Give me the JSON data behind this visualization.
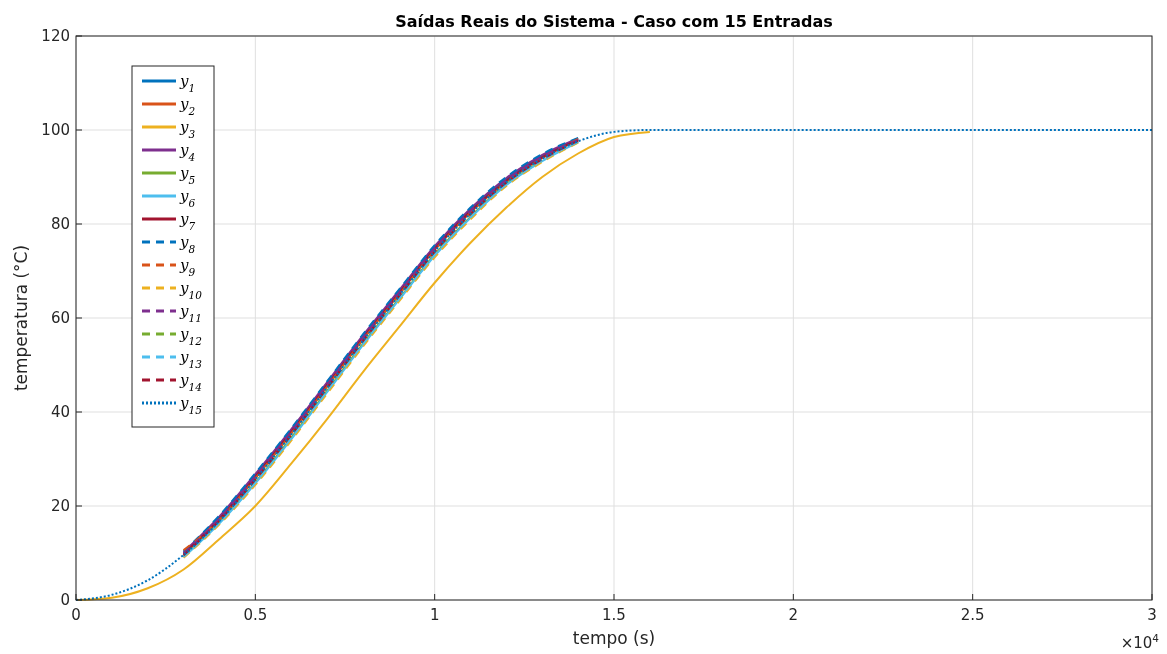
{
  "chart_data": {
    "type": "line",
    "title": "Saídas Reais do Sistema - Caso com 15 Entradas",
    "xlabel": "tempo (s)",
    "ylabel": "temperatura (°C)",
    "x": [
      0,
      0.1,
      0.2,
      0.3,
      0.4,
      0.5,
      0.6,
      0.7,
      0.8,
      0.9,
      1,
      1.1,
      1.2,
      1.3,
      1.4,
      1.5,
      1.6,
      1.7,
      2,
      3
    ],
    "xlim": [
      0,
      3
    ],
    "xticks": [
      0,
      0.5,
      1,
      1.5,
      2,
      2.5,
      3
    ],
    "ylim": [
      0,
      120
    ],
    "yticks": [
      0,
      20,
      40,
      60,
      80,
      100,
      120
    ],
    "grid": true,
    "legend": "top left",
    "line_style": "solid",
    "annotations": [
      "×10$^{4}$"
    ],
    "series": [
      {
        "name": "y$_{1}$",
        "color": "#0072bd",
        "values": [
          null,
          null,
          null,
          10,
          17.5,
          26.5,
          36,
          46,
          56,
          65.5,
          75,
          83,
          89.5,
          94.5,
          98,
          null,
          null,
          null,
          null,
          null
        ]
      },
      {
        "name": "y$_{2}$",
        "color": "#d95319",
        "values": [
          null,
          null,
          null,
          9.7,
          17,
          26,
          35.5,
          45.5,
          55.5,
          65,
          74.5,
          82.5,
          89,
          94,
          97.8,
          null,
          null,
          null,
          null,
          null
        ]
      },
      {
        "name": "y$_{3}$",
        "color": "#edb120",
        "values": [
          0,
          0.5,
          2.5,
          6.5,
          13,
          20,
          29,
          38.5,
          48.5,
          58,
          67.5,
          76,
          83.5,
          90,
          95,
          98.5,
          99.6,
          null,
          null,
          null
        ]
      },
      {
        "name": "y$_{4}$",
        "color": "#7e2f8e",
        "values": [
          null,
          null,
          null,
          10.2,
          17.8,
          26.8,
          36.3,
          46.3,
          56.3,
          65.8,
          75.3,
          83.3,
          89.8,
          94.7,
          98.2,
          null,
          null,
          null,
          null,
          null
        ]
      },
      {
        "name": "y$_{5}$",
        "color": "#77ac30",
        "values": [
          null,
          null,
          null,
          9.2,
          16.5,
          25,
          34.5,
          44.5,
          54.5,
          64,
          73.5,
          81.5,
          88.5,
          93.5,
          null,
          null,
          null,
          null,
          null,
          null
        ]
      },
      {
        "name": "y$_{6}$",
        "color": "#4dbeee",
        "values": [
          null,
          null,
          null,
          9.1,
          16.3,
          24.8,
          34.2,
          44.2,
          54.2,
          63.8,
          73.2,
          81.3,
          88.3,
          93.4,
          97.4,
          null,
          null,
          null,
          null,
          null
        ]
      },
      {
        "name": "y$_{7}$",
        "color": "#a2142f",
        "values": [
          null,
          null,
          null,
          9.8,
          17.2,
          26.2,
          35.7,
          45.7,
          55.7,
          65.2,
          74.7,
          82.7,
          89.2,
          94.2,
          97.9,
          null,
          null,
          null,
          null,
          null
        ]
      },
      {
        "name": "y$_{8}$",
        "color": "#0072bd",
        "line_style": "dashed",
        "values": [
          null,
          null,
          null,
          10.3,
          18,
          27,
          36.5,
          46.5,
          56.5,
          66,
          75.5,
          83.5,
          90,
          94.9,
          98.3,
          null,
          null,
          null,
          null,
          null
        ]
      },
      {
        "name": "y$_{9}$",
        "color": "#d95319",
        "line_style": "dashed",
        "values": [
          null,
          null,
          null,
          10.6,
          17.1,
          25.9,
          35.4,
          45.4,
          55.4,
          64.9,
          74.4,
          82.4,
          89,
          94,
          98.1,
          null,
          null,
          null,
          null,
          null
        ]
      },
      {
        "name": "y$_{10}$",
        "color": "#edb120",
        "line_style": "dashed",
        "values": [
          null,
          null,
          null,
          9,
          16.1,
          24.5,
          33.9,
          43.9,
          53.9,
          63.5,
          72.9,
          81,
          88.1,
          93.2,
          97.3,
          null,
          null,
          null,
          null,
          null
        ]
      },
      {
        "name": "y$_{11}$",
        "color": "#7e2f8e",
        "line_style": "dashed",
        "values": [
          null,
          null,
          null,
          9.9,
          17.3,
          26.3,
          35.8,
          45.8,
          55.8,
          65.3,
          74.8,
          82.8,
          89.3,
          94.3,
          97.9,
          null,
          null,
          null,
          null,
          null
        ]
      },
      {
        "name": "y$_{12}$",
        "color": "#77ac30",
        "line_style": "dashed",
        "values": [
          null,
          null,
          null,
          9.3,
          16.6,
          25.1,
          34.6,
          44.6,
          54.6,
          64.1,
          73.6,
          81.6,
          88.6,
          93.6,
          97.5,
          null,
          null,
          null,
          null,
          null
        ]
      },
      {
        "name": "y$_{13}$",
        "color": "#4dbeee",
        "line_style": "dashed",
        "values": [
          null,
          null,
          null,
          9.2,
          16.4,
          24.9,
          34.4,
          44.4,
          54.4,
          63.9,
          73.4,
          81.4,
          88.4,
          93.5,
          97.5,
          null,
          null,
          null,
          null,
          null
        ]
      },
      {
        "name": "y$_{14}$",
        "color": "#a2142f",
        "line_style": "dashed",
        "values": [
          null,
          null,
          null,
          9.5,
          16.9,
          25.6,
          35.1,
          45.1,
          55.1,
          64.6,
          74.1,
          82.1,
          88.8,
          93.8,
          97.7,
          null,
          null,
          null,
          null,
          null
        ]
      },
      {
        "name": "y$_{15}$",
        "color": "#0072bd",
        "line_style": "dotted",
        "values": [
          0,
          1.1,
          4.2,
          9.6,
          16.8,
          25.7,
          35.2,
          45.2,
          55.2,
          64.7,
          74.2,
          82.2,
          88.9,
          93.9,
          97.6,
          99.6,
          100,
          100,
          100,
          100
        ]
      }
    ]
  }
}
